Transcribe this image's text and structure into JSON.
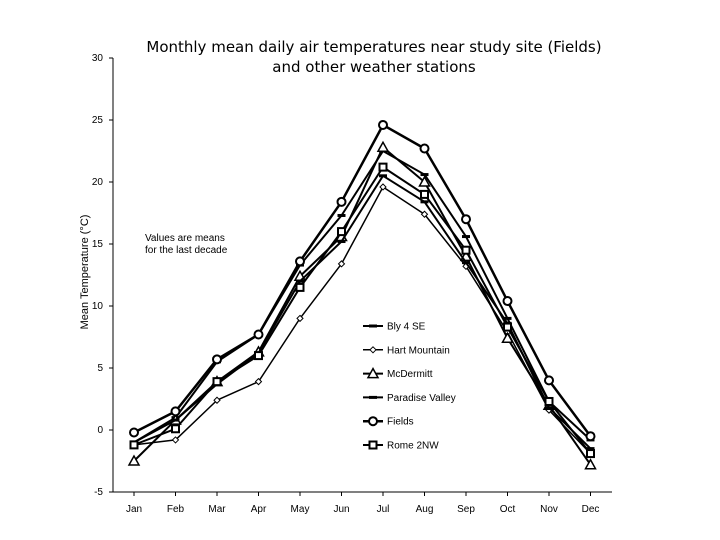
{
  "chart_data": {
    "type": "line",
    "title_lines": [
      "Monthly mean daily air temperatures near study site (Fields)",
      "and other weather stations"
    ],
    "xlabel": "",
    "ylabel": "Mean Temperature (°C)",
    "ylim": [
      -5,
      30
    ],
    "yticks": [
      -5,
      0,
      5,
      10,
      15,
      20,
      25,
      30
    ],
    "categories": [
      "Jan",
      "Feb",
      "Mar",
      "Apr",
      "May",
      "Jun",
      "Jul",
      "Aug",
      "Sep",
      "Oct",
      "Nov",
      "Dec"
    ],
    "annotation_lines": [
      "Values are means",
      "for the last decade"
    ],
    "legend_position": "right",
    "series": [
      {
        "name": "Bly 4 SE",
        "marker": "dash",
        "stroke_width": 2,
        "values": [
          -1.0,
          1.0,
          5.5,
          7.7,
          13.3,
          17.3,
          22.5,
          20.6,
          15.6,
          9.0,
          2.3,
          -0.8
        ]
      },
      {
        "name": "Hart Mountain",
        "marker": "diamond",
        "stroke_width": 1.5,
        "values": [
          -1.2,
          -0.8,
          2.4,
          3.9,
          9.0,
          13.4,
          19.6,
          17.4,
          13.2,
          7.9,
          1.6,
          -1.9
        ]
      },
      {
        "name": "McDermitt",
        "marker": "triangle",
        "stroke_width": 2,
        "values": [
          -2.5,
          0.8,
          3.9,
          6.3,
          12.4,
          15.6,
          22.8,
          20.0,
          14.0,
          7.4,
          2.0,
          -2.8
        ]
      },
      {
        "name": "Paradise Valley",
        "marker": "dash",
        "stroke_width": 2,
        "values": [
          -1.0,
          0.8,
          3.7,
          6.2,
          12.0,
          15.2,
          20.5,
          18.4,
          13.5,
          8.6,
          1.8,
          -1.5
        ]
      },
      {
        "name": "Fields",
        "marker": "circle",
        "stroke_width": 2.5,
        "values": [
          -0.2,
          1.5,
          5.7,
          7.7,
          13.6,
          18.4,
          24.6,
          22.7,
          17.0,
          10.4,
          4.0,
          -0.5
        ]
      },
      {
        "name": "Rome 2NW",
        "marker": "square",
        "stroke_width": 2,
        "values": [
          -1.2,
          0.1,
          3.9,
          6.0,
          11.5,
          16.0,
          21.2,
          19.0,
          14.5,
          8.3,
          2.3,
          -1.9
        ]
      }
    ]
  }
}
